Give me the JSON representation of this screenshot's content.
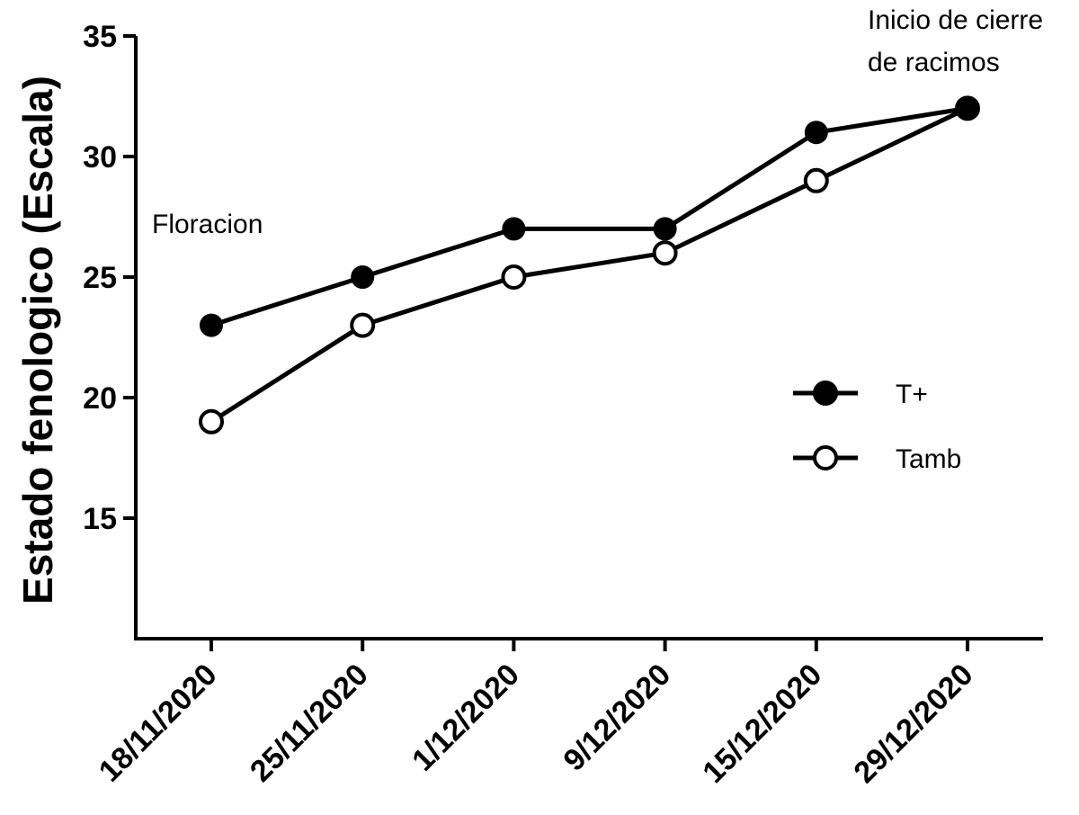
{
  "chart_data": {
    "type": "line",
    "title": "",
    "xlabel": "",
    "ylabel": "Estado fenologico (Escala)",
    "categories": [
      "18/11/2020",
      "25/11/2020",
      "1/12/2020",
      "9/12/2020",
      "15/12/2020",
      "29/12/2020"
    ],
    "ylim": [
      10,
      35
    ],
    "yticks": [
      15,
      20,
      25,
      30,
      35
    ],
    "grid": false,
    "legend_position": "right",
    "series": [
      {
        "name": "T+",
        "marker": "filled-circle",
        "values": [
          23,
          25,
          27,
          27,
          31,
          32
        ]
      },
      {
        "name": "Tamb",
        "marker": "open-circle",
        "values": [
          19,
          23,
          25,
          26,
          29,
          32
        ]
      }
    ],
    "annotations": [
      {
        "text": "Floracion",
        "near": "first-point"
      },
      {
        "text": "Inicio de cierre",
        "near": "last-point"
      },
      {
        "text": "de racimos",
        "near": "last-point"
      }
    ],
    "colors": {
      "line": "#000000",
      "open_marker_fill": "#ffffff"
    }
  }
}
